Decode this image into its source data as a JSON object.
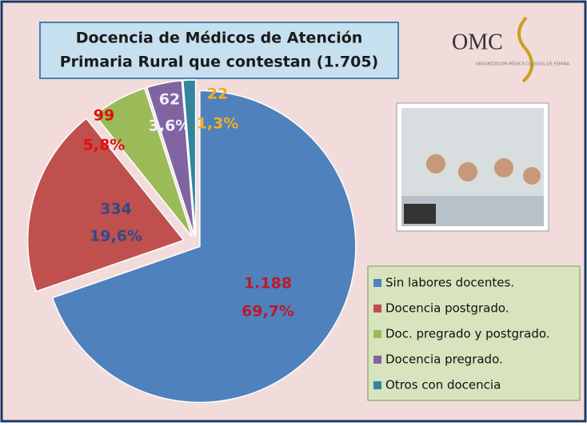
{
  "chart_data": {
    "type": "pie",
    "title": [
      "Docencia de Médicos de Atención",
      "Primaria Rural que contestan  (1.705)"
    ],
    "logo": {
      "text": "OMC",
      "subtext": "ORGANIZACIÓN MÉDICA COLEGIAL DE ESPAÑA"
    },
    "categories": [
      "Sin labores docentes.",
      "Docencia postgrado.",
      "Doc. pregrado y postgrado.",
      "Docencia pregrado.",
      "Otros con docencia"
    ],
    "values": [
      1188,
      334,
      99,
      62,
      22
    ],
    "value_labels": [
      "1.188",
      "334",
      "99",
      "62",
      "22"
    ],
    "percents": [
      69.7,
      19.6,
      5.8,
      3.6,
      1.3
    ],
    "percent_labels": [
      "69,7%",
      "19,6%",
      "5,8%",
      "3,6%",
      "1,3%"
    ],
    "colors": [
      "#4f81bd",
      "#c0504d",
      "#9bbb59",
      "#8064a2",
      "#31859c"
    ],
    "label_colors": [
      "#c0182a",
      "#2f4a8a",
      "#e01010",
      "#f0f0ff",
      "#f0b020"
    ],
    "legend": "right"
  }
}
